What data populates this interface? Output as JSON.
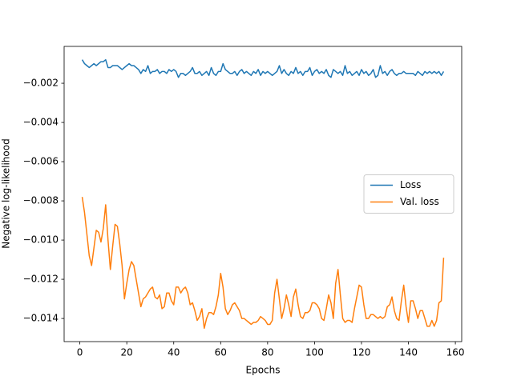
{
  "chart_data": {
    "type": "line",
    "xlabel": "Epochs",
    "ylabel": "Negative log-likelihood",
    "x": [
      1,
      2,
      3,
      4,
      5,
      6,
      7,
      8,
      9,
      10,
      11,
      12,
      13,
      14,
      15,
      16,
      17,
      18,
      19,
      20,
      21,
      22,
      23,
      24,
      25,
      26,
      27,
      28,
      29,
      30,
      31,
      32,
      33,
      34,
      35,
      36,
      37,
      38,
      39,
      40,
      41,
      42,
      43,
      44,
      45,
      46,
      47,
      48,
      49,
      50,
      51,
      52,
      53,
      54,
      55,
      56,
      57,
      58,
      59,
      60,
      61,
      62,
      63,
      64,
      65,
      66,
      67,
      68,
      69,
      70,
      71,
      72,
      73,
      74,
      75,
      76,
      77,
      78,
      79,
      80,
      81,
      82,
      83,
      84,
      85,
      86,
      87,
      88,
      89,
      90,
      91,
      92,
      93,
      94,
      95,
      96,
      97,
      98,
      99,
      100,
      101,
      102,
      103,
      104,
      105,
      106,
      107,
      108,
      109,
      110,
      111,
      112,
      113,
      114,
      115,
      116,
      117,
      118,
      119,
      120,
      121,
      122,
      123,
      124,
      125,
      126,
      127,
      128,
      129,
      130,
      131,
      132,
      133,
      134,
      135,
      136,
      137,
      138,
      139,
      140,
      141,
      142,
      143,
      144,
      145,
      146,
      147,
      148,
      149,
      150,
      151,
      152,
      153,
      154,
      155
    ],
    "series": [
      {
        "name": "Loss",
        "color": "#1f77b4",
        "values": [
          -0.0008,
          -0.001,
          -0.0011,
          -0.0012,
          -0.0011,
          -0.001,
          -0.0011,
          -0.001,
          -0.0009,
          -0.0009,
          -0.0008,
          -0.0012,
          -0.0012,
          -0.0011,
          -0.0011,
          -0.0011,
          -0.0012,
          -0.0013,
          -0.0012,
          -0.0011,
          -0.001,
          -0.0011,
          -0.0011,
          -0.0012,
          -0.0013,
          -0.0015,
          -0.0013,
          -0.0014,
          -0.0011,
          -0.0015,
          -0.0014,
          -0.0014,
          -0.0013,
          -0.0015,
          -0.0014,
          -0.0014,
          -0.0015,
          -0.0013,
          -0.0014,
          -0.0013,
          -0.0014,
          -0.0017,
          -0.0015,
          -0.0015,
          -0.0016,
          -0.0015,
          -0.0014,
          -0.0012,
          -0.0015,
          -0.0015,
          -0.0014,
          -0.0016,
          -0.0015,
          -0.0014,
          -0.0016,
          -0.0012,
          -0.0015,
          -0.0016,
          -0.0014,
          -0.0014,
          -0.001,
          -0.0013,
          -0.0014,
          -0.0015,
          -0.0015,
          -0.0014,
          -0.0016,
          -0.0014,
          -0.0013,
          -0.0015,
          -0.0014,
          -0.0015,
          -0.0016,
          -0.0014,
          -0.0015,
          -0.0013,
          -0.0016,
          -0.0014,
          -0.0015,
          -0.0014,
          -0.0015,
          -0.0016,
          -0.0015,
          -0.0014,
          -0.0011,
          -0.0015,
          -0.0013,
          -0.0015,
          -0.0016,
          -0.0014,
          -0.0015,
          -0.0012,
          -0.0015,
          -0.0014,
          -0.0016,
          -0.0014,
          -0.0014,
          -0.0012,
          -0.0016,
          -0.0014,
          -0.0013,
          -0.0015,
          -0.0014,
          -0.0015,
          -0.0013,
          -0.0016,
          -0.0017,
          -0.0013,
          -0.0014,
          -0.0015,
          -0.0014,
          -0.0016,
          -0.0011,
          -0.0015,
          -0.0014,
          -0.0016,
          -0.0015,
          -0.0014,
          -0.0016,
          -0.0013,
          -0.0015,
          -0.0014,
          -0.0016,
          -0.0015,
          -0.0013,
          -0.0017,
          -0.0016,
          -0.0011,
          -0.0015,
          -0.0014,
          -0.0016,
          -0.0014,
          -0.0013,
          -0.0015,
          -0.0016,
          -0.0015,
          -0.0015,
          -0.0014,
          -0.0015,
          -0.0015,
          -0.0015,
          -0.0015,
          -0.0016,
          -0.0014,
          -0.0015,
          -0.0016,
          -0.0014,
          -0.0015,
          -0.0014,
          -0.0015,
          -0.0014,
          -0.0015,
          -0.0014,
          -0.0016,
          -0.0014
        ]
      },
      {
        "name": "Val. loss",
        "color": "#ff7f0e",
        "values": [
          -0.0078,
          -0.0086,
          -0.0097,
          -0.0108,
          -0.0113,
          -0.0104,
          -0.0095,
          -0.0096,
          -0.0101,
          -0.0094,
          -0.0082,
          -0.01,
          -0.0115,
          -0.0103,
          -0.0092,
          -0.0093,
          -0.0102,
          -0.0113,
          -0.013,
          -0.0122,
          -0.0115,
          -0.0111,
          -0.0113,
          -0.012,
          -0.0127,
          -0.0134,
          -0.013,
          -0.0129,
          -0.0127,
          -0.0125,
          -0.0124,
          -0.0129,
          -0.013,
          -0.0128,
          -0.0135,
          -0.0134,
          -0.0127,
          -0.0127,
          -0.0131,
          -0.0133,
          -0.0124,
          -0.0124,
          -0.0127,
          -0.0125,
          -0.0124,
          -0.0127,
          -0.0133,
          -0.0132,
          -0.0136,
          -0.0141,
          -0.0139,
          -0.0135,
          -0.0145,
          -0.014,
          -0.0137,
          -0.0137,
          -0.0138,
          -0.0134,
          -0.0128,
          -0.0117,
          -0.0124,
          -0.0135,
          -0.0138,
          -0.0136,
          -0.0133,
          -0.0132,
          -0.0134,
          -0.0136,
          -0.014,
          -0.014,
          -0.0141,
          -0.0142,
          -0.0143,
          -0.0142,
          -0.0142,
          -0.0141,
          -0.0139,
          -0.014,
          -0.0141,
          -0.0143,
          -0.0143,
          -0.0141,
          -0.0127,
          -0.012,
          -0.013,
          -0.014,
          -0.0135,
          -0.0128,
          -0.0133,
          -0.0139,
          -0.0129,
          -0.0125,
          -0.0133,
          -0.0139,
          -0.014,
          -0.0137,
          -0.0137,
          -0.0136,
          -0.0132,
          -0.0132,
          -0.0133,
          -0.0135,
          -0.014,
          -0.0141,
          -0.0135,
          -0.0128,
          -0.0132,
          -0.014,
          -0.0122,
          -0.0115,
          -0.0128,
          -0.014,
          -0.0142,
          -0.0141,
          -0.0141,
          -0.0142,
          -0.0135,
          -0.0129,
          -0.0123,
          -0.0124,
          -0.0133,
          -0.014,
          -0.014,
          -0.0138,
          -0.0138,
          -0.0139,
          -0.014,
          -0.0139,
          -0.014,
          -0.0139,
          -0.0134,
          -0.0133,
          -0.0129,
          -0.0136,
          -0.014,
          -0.0141,
          -0.0131,
          -0.0123,
          -0.0134,
          -0.0142,
          -0.0131,
          -0.0131,
          -0.0135,
          -0.014,
          -0.0136,
          -0.0136,
          -0.014,
          -0.0144,
          -0.0144,
          -0.0141,
          -0.0144,
          -0.0141,
          -0.0132,
          -0.0131,
          -0.0109
        ]
      }
    ],
    "xlim": [
      -6.7,
      162.7
    ],
    "xticks": [
      0,
      20,
      40,
      60,
      80,
      100,
      120,
      140,
      160
    ],
    "ylim": [
      -0.01518,
      -0.00012
    ],
    "yticks": [
      {
        "value": -0.014,
        "label": "−0.014"
      },
      {
        "value": -0.012,
        "label": "−0.012"
      },
      {
        "value": -0.01,
        "label": "−0.010"
      },
      {
        "value": -0.008,
        "label": "−0.008"
      },
      {
        "value": -0.006,
        "label": "−0.006"
      },
      {
        "value": -0.004,
        "label": "−0.004"
      },
      {
        "value": -0.002,
        "label": "−0.002"
      }
    ],
    "grid": false,
    "legend": "center right"
  }
}
